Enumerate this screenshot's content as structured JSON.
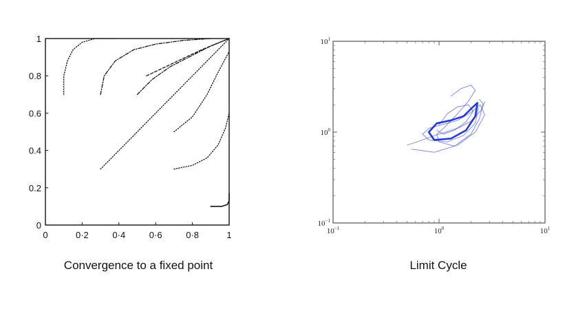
{
  "chart_data": [
    {
      "type": "line",
      "title": "",
      "caption": "Convergence to a fixed point",
      "xlim": [
        0,
        1
      ],
      "ylim": [
        0,
        1
      ],
      "xticks": [
        0,
        0.2,
        0.4,
        0.6,
        0.8,
        1
      ],
      "xtick_labels": [
        "0",
        "0·2",
        "0·4",
        "0·6",
        "0·8",
        "1"
      ],
      "yticks": [
        0,
        0.2,
        0.4,
        0.6,
        0.8,
        1
      ],
      "ytick_labels": [
        "0",
        "0.2",
        "0.4",
        "0.6",
        "0.8",
        "1"
      ],
      "grid": false,
      "series": [
        {
          "style": "dotted",
          "points": [
            [
              0.1,
              0.7
            ],
            [
              0.1,
              0.8
            ],
            [
              0.12,
              0.88
            ],
            [
              0.15,
              0.94
            ],
            [
              0.2,
              0.98
            ],
            [
              0.27,
              1.0
            ],
            [
              0.38,
              1.0
            ]
          ]
        },
        {
          "style": "dashdot",
          "points": [
            [
              0.3,
              0.7
            ],
            [
              0.32,
              0.8
            ],
            [
              0.38,
              0.88
            ],
            [
              0.48,
              0.94
            ],
            [
              0.6,
              0.97
            ],
            [
              0.75,
              0.99
            ],
            [
              0.9,
              1.0
            ]
          ]
        },
        {
          "style": "dashdot",
          "points": [
            [
              0.5,
              0.7
            ],
            [
              0.58,
              0.78
            ],
            [
              0.68,
              0.85
            ],
            [
              0.8,
              0.91
            ],
            [
              0.9,
              0.96
            ],
            [
              1.0,
              1.0
            ]
          ]
        },
        {
          "style": "dotted",
          "points": [
            [
              0.3,
              0.3
            ],
            [
              0.45,
              0.45
            ],
            [
              0.6,
              0.6
            ],
            [
              0.75,
              0.75
            ],
            [
              0.9,
              0.9
            ],
            [
              1.0,
              1.0
            ]
          ]
        },
        {
          "style": "dashed",
          "points": [
            [
              0.55,
              0.8
            ],
            [
              0.7,
              0.87
            ],
            [
              0.85,
              0.94
            ],
            [
              1.0,
              1.0
            ]
          ]
        },
        {
          "style": "dotted",
          "points": [
            [
              0.7,
              0.5
            ],
            [
              0.8,
              0.58
            ],
            [
              0.88,
              0.7
            ],
            [
              0.94,
              0.82
            ],
            [
              1.0,
              0.93
            ]
          ]
        },
        {
          "style": "dotted",
          "points": [
            [
              0.7,
              0.3
            ],
            [
              0.8,
              0.32
            ],
            [
              0.88,
              0.36
            ],
            [
              0.94,
              0.43
            ],
            [
              0.98,
              0.52
            ],
            [
              1.0,
              0.6
            ]
          ]
        },
        {
          "style": "solid",
          "points": [
            [
              0.9,
              0.1
            ],
            [
              0.96,
              0.1
            ],
            [
              0.99,
              0.11
            ],
            [
              1.0,
              0.13
            ],
            [
              1.0,
              0.17
            ]
          ]
        }
      ]
    },
    {
      "type": "line",
      "title": "",
      "caption": "Limit Cycle",
      "xscale": "log",
      "yscale": "log",
      "xlim": [
        0.1,
        10
      ],
      "ylim": [
        0.1,
        10
      ],
      "xtick_labels": [
        {
          "base": "10",
          "exp": "−1"
        },
        {
          "base": "10",
          "exp": "0"
        },
        {
          "base": "10",
          "exp": "1"
        }
      ],
      "ytick_labels": [
        {
          "base": "10",
          "exp": "−1"
        },
        {
          "base": "10",
          "exp": "0"
        },
        {
          "base": "10",
          "exp": "1"
        }
      ],
      "grid": false,
      "color": "#1a2fd6",
      "series": [
        {
          "role": "limit-cycle",
          "points": [
            [
              0.8,
              1.0
            ],
            [
              0.95,
              1.25
            ],
            [
              1.3,
              1.35
            ],
            [
              1.7,
              1.5
            ],
            [
              2.05,
              1.85
            ],
            [
              2.3,
              2.1
            ],
            [
              2.2,
              1.5
            ],
            [
              1.8,
              1.05
            ],
            [
              1.3,
              0.85
            ],
            [
              0.9,
              0.82
            ],
            [
              0.8,
              1.0
            ]
          ]
        },
        {
          "role": "transient",
          "points": [
            [
              0.55,
              0.65
            ],
            [
              0.9,
              0.6
            ],
            [
              1.5,
              0.72
            ],
            [
              2.2,
              1.0
            ],
            [
              2.7,
              1.55
            ],
            [
              2.45,
              2.0
            ],
            [
              2.0,
              1.65
            ],
            [
              1.5,
              1.35
            ],
            [
              1.05,
              1.2
            ],
            [
              0.8,
              1.1
            ],
            [
              0.7,
              0.95
            ],
            [
              0.8,
              0.82
            ],
            [
              1.2,
              0.78
            ],
            [
              1.7,
              0.92
            ],
            [
              2.2,
              1.25
            ],
            [
              2.35,
              1.85
            ]
          ]
        },
        {
          "role": "transient",
          "points": [
            [
              1.3,
              2.5
            ],
            [
              1.6,
              3.0
            ],
            [
              2.0,
              3.3
            ],
            [
              2.2,
              2.9
            ],
            [
              1.9,
              2.2
            ],
            [
              1.5,
              1.6
            ],
            [
              1.1,
              1.1
            ],
            [
              0.95,
              0.95
            ],
            [
              1.0,
              0.78
            ],
            [
              1.4,
              0.7
            ],
            [
              2.0,
              0.95
            ],
            [
              2.4,
              1.4
            ],
            [
              2.6,
              2.05
            ],
            [
              2.4,
              2.3
            ]
          ]
        },
        {
          "role": "transient",
          "points": [
            [
              0.5,
              0.72
            ],
            [
              0.62,
              0.78
            ],
            [
              0.82,
              0.88
            ],
            [
              1.15,
              1.0
            ],
            [
              1.55,
              1.12
            ],
            [
              2.0,
              1.32
            ],
            [
              2.5,
              1.75
            ],
            [
              2.7,
              2.15
            ]
          ]
        },
        {
          "role": "transient",
          "points": [
            [
              1.0,
              1.2
            ],
            [
              1.2,
              1.6
            ],
            [
              1.5,
              1.9
            ],
            [
              1.9,
              2.0
            ],
            [
              2.1,
              1.7
            ],
            [
              1.8,
              1.3
            ],
            [
              1.4,
              1.05
            ],
            [
              1.1,
              0.95
            ],
            [
              0.95,
              1.05
            ]
          ]
        }
      ]
    }
  ]
}
